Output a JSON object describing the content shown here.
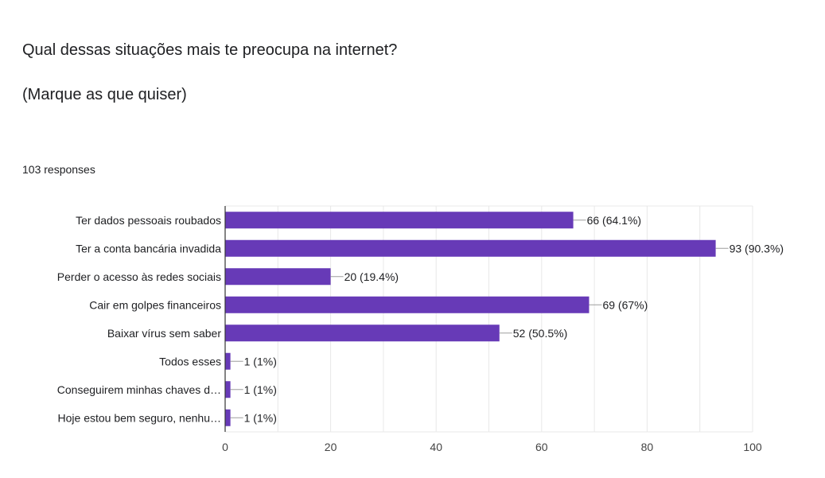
{
  "header": {
    "question": "Qual dessas situações mais te preocupa na internet?",
    "hint": "(Marque as que quiser)",
    "responses": "103 responses"
  },
  "colors": {
    "bar": "#673ab7",
    "grid": "#e8e8e8",
    "axis": "#333333",
    "leader": "#9e9e9e"
  },
  "chart_data": {
    "type": "bar",
    "orientation": "horizontal",
    "categories": [
      "Ter dados pessoais roubados",
      "Ter a conta bancária invadida",
      "Perder o acesso às redes sociais",
      "Cair em golpes financeiros",
      "Baixar vírus sem saber",
      "Todos esses",
      "Conseguirem minhas chaves d…",
      "Hoje estou bem seguro, nenhu…"
    ],
    "values": [
      66,
      93,
      20,
      69,
      52,
      1,
      1,
      1
    ],
    "value_labels": [
      "66 (64.1%)",
      "93 (90.3%)",
      "20 (19.4%)",
      "69 (67%)",
      "52 (50.5%)",
      "1 (1%)",
      "1 (1%)",
      "1 (1%)"
    ],
    "xlim": [
      0,
      100
    ],
    "xticks": [
      0,
      20,
      40,
      60,
      80,
      100
    ],
    "grid": true
  }
}
